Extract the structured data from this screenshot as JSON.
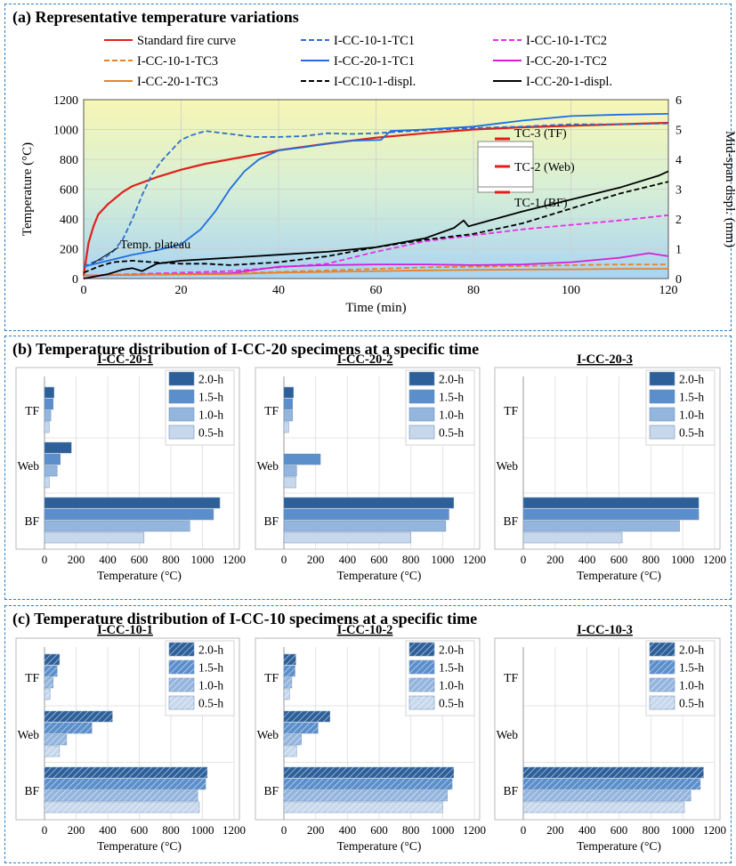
{
  "panels": {
    "a": "(a) Representative temperature variations",
    "b": "(b) Temperature distribution of I-CC-20 specimens at a specific time",
    "c": "(c) Temperature distribution of I-CC-10 specimens at a specific time"
  },
  "chart_data": [
    {
      "type": "line",
      "xlabel": "Time (min)",
      "ylabel": "Temperature (°C)",
      "y2label": "Mid-span displ. (mm)",
      "xlim": [
        0,
        120
      ],
      "ylim": [
        0,
        1200
      ],
      "y2lim": [
        0,
        6
      ],
      "xticks": [
        0,
        20,
        40,
        60,
        80,
        100,
        120
      ],
      "yticks": [
        0,
        200,
        400,
        600,
        800,
        1000,
        1200
      ],
      "y2ticks": [
        0,
        1,
        2,
        3,
        4,
        5,
        6
      ],
      "grid": true,
      "background": "gradient yellow-to-blue",
      "annotations": [
        "Temp. plateau",
        "TC-3 (TF)",
        "TC-2 (Web)",
        "TC-1 (BF)"
      ],
      "series": [
        {
          "name": "Standard fire curve",
          "color": "#e0201b",
          "dash": "solid",
          "axis": "left",
          "x": [
            0,
            1,
            2,
            3,
            5,
            8,
            10,
            15,
            20,
            25,
            30,
            40,
            50,
            60,
            70,
            80,
            90,
            100,
            110,
            120
          ],
          "y": [
            20,
            240,
            350,
            430,
            500,
            580,
            620,
            680,
            730,
            770,
            800,
            860,
            905,
            945,
            975,
            1000,
            1015,
            1025,
            1035,
            1045
          ]
        },
        {
          "name": "I-CC-10-1-TC1",
          "color": "#2f6fd0",
          "dash": "dash",
          "axis": "left",
          "x": [
            0,
            2,
            4,
            6,
            8,
            10,
            12,
            14,
            16,
            18,
            20,
            22,
            25,
            30,
            35,
            40,
            45,
            50,
            55,
            60,
            70,
            80,
            90,
            100,
            110,
            120
          ],
          "y": [
            80,
            110,
            130,
            180,
            260,
            400,
            560,
            700,
            790,
            860,
            930,
            960,
            990,
            970,
            950,
            950,
            955,
            975,
            970,
            975,
            995,
            1010,
            1020,
            1035,
            1035,
            1040
          ]
        },
        {
          "name": "I-CC-10-1-TC2",
          "color": "#e62fe6",
          "dash": "dash",
          "axis": "left",
          "x": [
            0,
            10,
            20,
            30,
            40,
            50,
            60,
            70,
            80,
            90,
            100,
            110,
            120
          ],
          "y": [
            20,
            30,
            40,
            50,
            75,
            100,
            180,
            250,
            290,
            330,
            360,
            390,
            425
          ]
        },
        {
          "name": "I-CC-10-1-TC3",
          "color": "#e8822a",
          "dash": "dash",
          "axis": "left",
          "x": [
            0,
            10,
            20,
            30,
            40,
            50,
            60,
            70,
            80,
            90,
            100,
            110,
            120
          ],
          "y": [
            20,
            25,
            30,
            35,
            45,
            55,
            65,
            75,
            80,
            85,
            90,
            95,
            95
          ]
        },
        {
          "name": "I-CC-20-1-TC1",
          "color": "#1f6fe0",
          "dash": "solid",
          "axis": "left",
          "x": [
            0,
            5,
            10,
            15,
            20,
            24,
            27,
            30,
            33,
            36,
            40,
            45,
            50,
            55,
            61,
            63,
            70,
            80,
            85,
            90,
            100,
            110,
            120
          ],
          "y": [
            80,
            120,
            160,
            190,
            230,
            330,
            450,
            600,
            720,
            800,
            860,
            880,
            905,
            925,
            930,
            990,
            1000,
            1020,
            1040,
            1060,
            1090,
            1100,
            1105
          ]
        },
        {
          "name": "I-CC-20-1-TC2",
          "color": "#d61fd6",
          "dash": "solid",
          "axis": "left",
          "x": [
            0,
            10,
            20,
            30,
            40,
            50,
            60,
            70,
            80,
            90,
            100,
            110,
            116,
            120
          ],
          "y": [
            20,
            25,
            30,
            35,
            80,
            90,
            95,
            95,
            90,
            95,
            110,
            140,
            170,
            150
          ]
        },
        {
          "name": "I-CC-20-1-TC3",
          "color": "#e8822a",
          "dash": "solid",
          "axis": "left",
          "x": [
            0,
            10,
            20,
            30,
            40,
            50,
            60,
            70,
            80,
            90,
            100,
            110,
            120
          ],
          "y": [
            20,
            25,
            28,
            30,
            40,
            45,
            50,
            55,
            58,
            60,
            62,
            65,
            65
          ]
        },
        {
          "name": "I-CC10-1-displ.",
          "color": "#000000",
          "dash": "dash",
          "axis": "right",
          "x": [
            0,
            3,
            6,
            10,
            14,
            20,
            25,
            30,
            40,
            50,
            60,
            70,
            80,
            90,
            100,
            110,
            120
          ],
          "y": [
            0.2,
            0.4,
            0.55,
            0.6,
            0.55,
            0.5,
            0.5,
            0.45,
            0.55,
            0.75,
            1.05,
            1.3,
            1.5,
            1.85,
            2.35,
            2.85,
            3.25
          ]
        },
        {
          "name": "I-CC-20-1-displ.",
          "color": "#000000",
          "dash": "solid",
          "axis": "right",
          "x": [
            0,
            5,
            8,
            10,
            12,
            15,
            20,
            30,
            40,
            50,
            60,
            70,
            76,
            78,
            79,
            80,
            90,
            100,
            110,
            118,
            120
          ],
          "y": [
            0,
            0.15,
            0.3,
            0.35,
            0.25,
            0.5,
            0.6,
            0.7,
            0.8,
            0.9,
            1.05,
            1.35,
            1.7,
            1.95,
            1.75,
            1.8,
            2.25,
            2.65,
            3.05,
            3.45,
            3.6
          ]
        }
      ]
    },
    {
      "type": "bar",
      "orientation": "horizontal",
      "title": "I-CC-20-1",
      "xlabel": "Temperature (°C)",
      "categories": [
        "TF",
        "Web",
        "BF"
      ],
      "xlim": [
        0,
        1200
      ],
      "xticks": [
        0,
        200,
        400,
        600,
        800,
        1000,
        1200
      ],
      "legend": "top-right",
      "hatched": false,
      "series": [
        {
          "name": "2.0-h",
          "color": "#2d5f99",
          "values": [
            60,
            170,
            1110
          ]
        },
        {
          "name": "1.5-h",
          "color": "#5b8fcc",
          "values": [
            55,
            100,
            1070
          ]
        },
        {
          "name": "1.0-h",
          "color": "#94b5dd",
          "values": [
            40,
            80,
            920
          ]
        },
        {
          "name": "0.5-h",
          "color": "#c8d8ec",
          "values": [
            30,
            30,
            630
          ]
        }
      ]
    },
    {
      "type": "bar",
      "orientation": "horizontal",
      "title": "I-CC-20-2",
      "xlabel": "Temperature (°C)",
      "categories": [
        "TF",
        "Web",
        "BF"
      ],
      "xlim": [
        0,
        1200
      ],
      "xticks": [
        0,
        200,
        400,
        600,
        800,
        1000,
        1200
      ],
      "legend": "top-right",
      "hatched": false,
      "series": [
        {
          "name": "2.0-h",
          "color": "#2d5f99",
          "values": [
            60,
            null,
            1070
          ]
        },
        {
          "name": "1.5-h",
          "color": "#5b8fcc",
          "values": [
            55,
            230,
            1040
          ]
        },
        {
          "name": "1.0-h",
          "color": "#94b5dd",
          "values": [
            55,
            80,
            1020
          ]
        },
        {
          "name": "0.5-h",
          "color": "#c8d8ec",
          "values": [
            30,
            75,
            800
          ]
        }
      ]
    },
    {
      "type": "bar",
      "orientation": "horizontal",
      "title": "I-CC-20-3",
      "xlabel": "Temperature (°C)",
      "categories": [
        "TF",
        "Web",
        "BF"
      ],
      "xlim": [
        0,
        1200
      ],
      "xticks": [
        0,
        200,
        400,
        600,
        800,
        1000,
        1200
      ],
      "legend": "top-right",
      "hatched": false,
      "series": [
        {
          "name": "2.0-h",
          "color": "#2d5f99",
          "values": [
            null,
            null,
            1100
          ]
        },
        {
          "name": "1.5-h",
          "color": "#5b8fcc",
          "values": [
            null,
            null,
            1100
          ]
        },
        {
          "name": "1.0-h",
          "color": "#94b5dd",
          "values": [
            null,
            null,
            980
          ]
        },
        {
          "name": "0.5-h",
          "color": "#c8d8ec",
          "values": [
            null,
            null,
            620
          ]
        }
      ]
    },
    {
      "type": "bar",
      "orientation": "horizontal",
      "title": "I-CC-10-1",
      "xlabel": "Temperature (°C)",
      "categories": [
        "TF",
        "Web",
        "BF"
      ],
      "xlim": [
        0,
        1200
      ],
      "xticks": [
        0,
        200,
        400,
        600,
        800,
        1000,
        1200
      ],
      "legend": "top-right",
      "hatched": true,
      "series": [
        {
          "name": "2.0-h",
          "color": "#2d5f99",
          "values": [
            95,
            430,
            1030
          ]
        },
        {
          "name": "1.5-h",
          "color": "#5b8fcc",
          "values": [
            80,
            300,
            1020
          ]
        },
        {
          "name": "1.0-h",
          "color": "#94b5dd",
          "values": [
            55,
            140,
            970
          ]
        },
        {
          "name": "0.5-h",
          "color": "#c8d8ec",
          "values": [
            35,
            95,
            980
          ]
        }
      ]
    },
    {
      "type": "bar",
      "orientation": "horizontal",
      "title": "I-CC-10-2",
      "xlabel": "Temperature (°C)",
      "categories": [
        "TF",
        "Web",
        "BF"
      ],
      "xlim": [
        0,
        1200
      ],
      "xticks": [
        0,
        200,
        400,
        600,
        800,
        1000,
        1200
      ],
      "legend": "top-right",
      "hatched": true,
      "series": [
        {
          "name": "2.0-h",
          "color": "#2d5f99",
          "values": [
            75,
            290,
            1070
          ]
        },
        {
          "name": "1.5-h",
          "color": "#5b8fcc",
          "values": [
            70,
            215,
            1060
          ]
        },
        {
          "name": "1.0-h",
          "color": "#94b5dd",
          "values": [
            50,
            110,
            1030
          ]
        },
        {
          "name": "0.5-h",
          "color": "#c8d8ec",
          "values": [
            35,
            80,
            1000
          ]
        }
      ]
    },
    {
      "type": "bar",
      "orientation": "horizontal",
      "title": "I-CC-10-3",
      "xlabel": "Temperature (°C)",
      "categories": [
        "TF",
        "Web",
        "BF"
      ],
      "xlim": [
        0,
        1200
      ],
      "xticks": [
        0,
        200,
        400,
        600,
        800,
        1000,
        1200
      ],
      "legend": "top-right",
      "hatched": true,
      "series": [
        {
          "name": "2.0-h",
          "color": "#2d5f99",
          "values": [
            null,
            null,
            1130
          ]
        },
        {
          "name": "1.5-h",
          "color": "#5b8fcc",
          "values": [
            null,
            null,
            1110
          ]
        },
        {
          "name": "1.0-h",
          "color": "#94b5dd",
          "values": [
            null,
            null,
            1050
          ]
        },
        {
          "name": "0.5-h",
          "color": "#c8d8ec",
          "values": [
            null,
            null,
            1010
          ]
        }
      ]
    }
  ]
}
